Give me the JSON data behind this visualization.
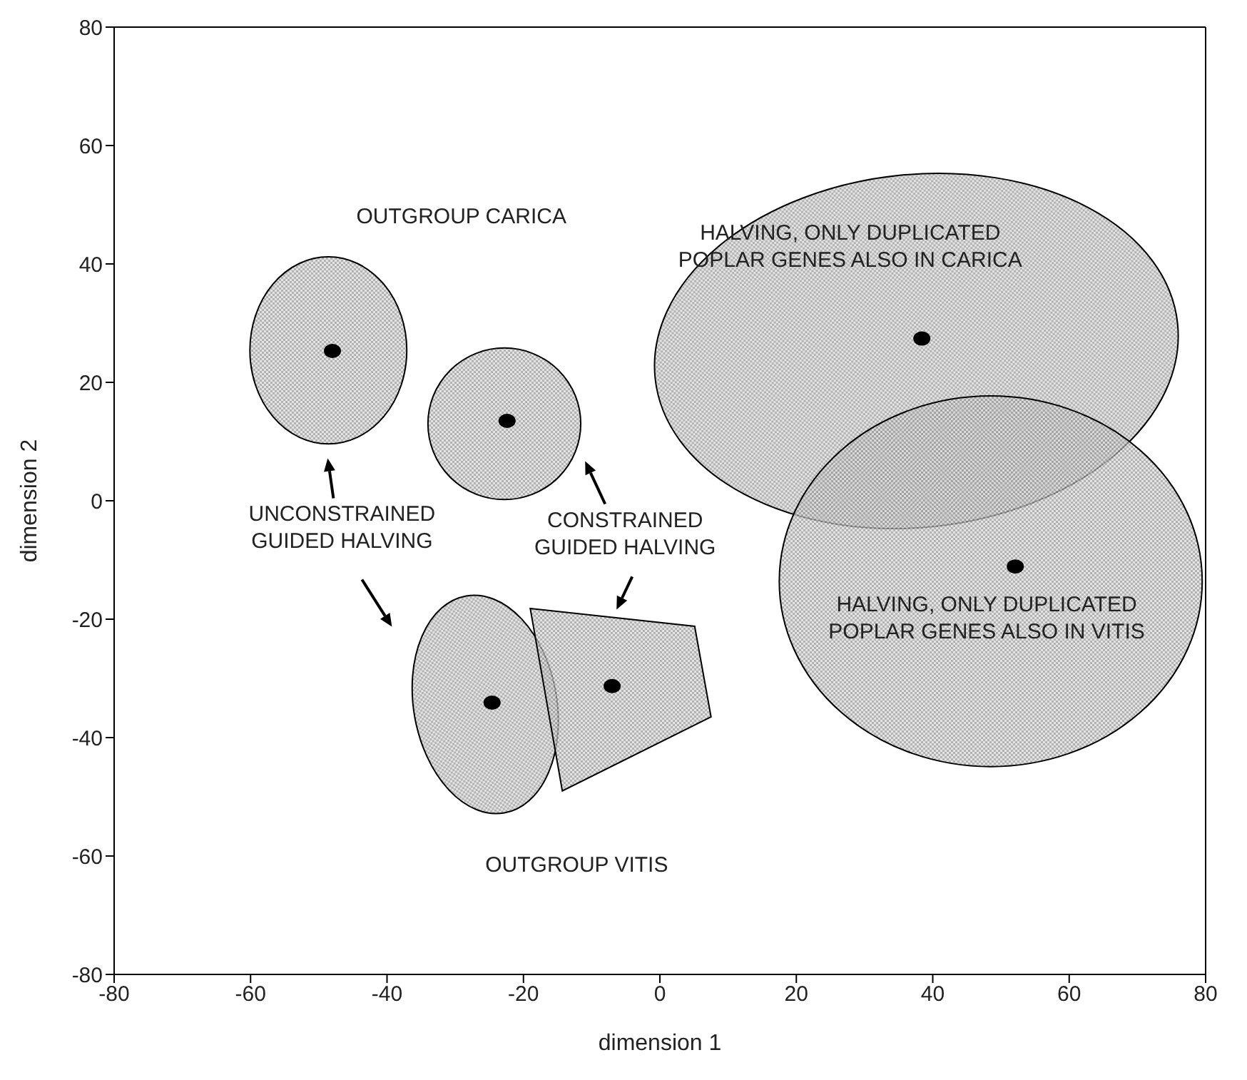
{
  "chart_data": {
    "type": "scatter",
    "xlabel": "dimension 1",
    "ylabel": "dimension 2",
    "xlim": [
      -80,
      80
    ],
    "xticks": [
      -80,
      -60,
      -40,
      -20,
      0,
      20,
      40,
      60,
      80
    ],
    "ylim": [
      -80,
      80
    ],
    "yticks": [
      -80,
      -60,
      -40,
      -20,
      0,
      20,
      40,
      60,
      80
    ],
    "grid": false,
    "legend": false,
    "marker": "circle",
    "series": [
      {
        "color": "#000000",
        "x": [
          -48,
          -22.4,
          -24.6,
          -7.0,
          38.4,
          52.1
        ],
        "values": [
          25.3,
          13.5,
          -34.1,
          -31.3,
          27.4,
          -11.1
        ]
      }
    ],
    "annotations": [
      "OUTGROUP CARICA",
      "HALVING, ONLY DUPLICATED\nPOPLAR GENES ALSO IN CARICA",
      "UNCONSTRAINED\nGUIDED HALVING",
      "CONSTRAINED\nGUIDED HALVING",
      "HALVING, ONLY DUPLICATED\nPOPLAR GENES ALSO IN VITIS",
      "OUTGROUP VITIS"
    ]
  }
}
